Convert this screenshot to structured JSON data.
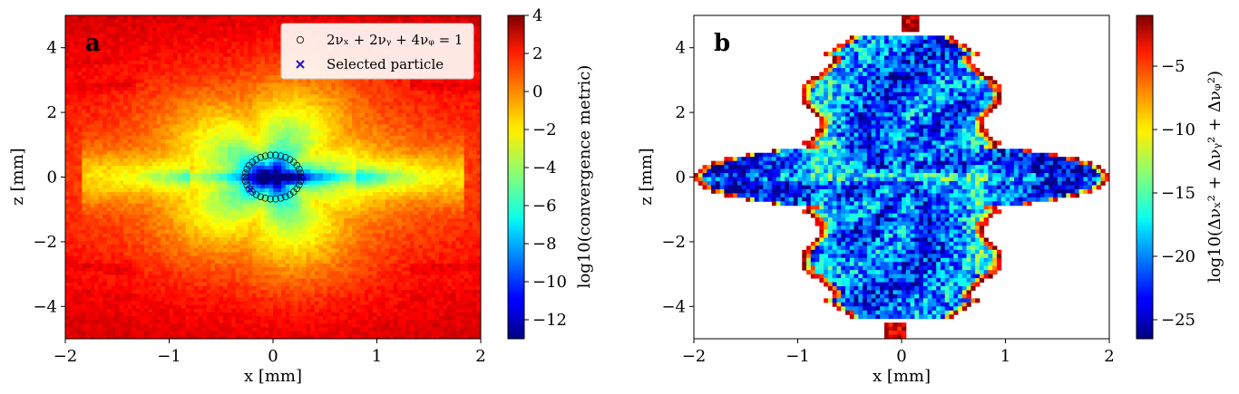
{
  "chart_data": [
    {
      "type": "heatmap",
      "panel_label": "a",
      "xlabel": "x [mm]",
      "ylabel": "z [mm]",
      "xlim": [
        -2,
        2
      ],
      "ylim": [
        -5,
        5
      ],
      "xticks": [
        "−2",
        "−1",
        "0",
        "1",
        "2"
      ],
      "xtick_values": [
        -2,
        -1,
        0,
        1,
        2
      ],
      "yticks": [
        "−4",
        "−2",
        "0",
        "2",
        "4"
      ],
      "ytick_values": [
        -4,
        -2,
        0,
        2,
        4
      ],
      "colormap": "jet",
      "colorbar": {
        "label": "log10(convergence metric)",
        "range": [
          -13,
          4
        ],
        "ticks": [
          "4",
          "2",
          "0",
          "−2",
          "−4",
          "−6",
          "−8",
          "−10",
          "−12"
        ],
        "tick_values": [
          4,
          2,
          0,
          -2,
          -4,
          -6,
          -8,
          -10,
          -12
        ]
      },
      "legend": {
        "placement": "top-right",
        "entries": [
          {
            "marker": "open-circle",
            "label": "2νₓ + 2νᵧ + 4νᵩ = 1"
          },
          {
            "marker": "x",
            "color": "#2a10c8",
            "label": "Selected particle"
          }
        ]
      },
      "resonance_curve": {
        "label": "2νₓ + 2νᵧ + 4νᵩ = 1",
        "center_x": 0,
        "center_z": 0,
        "half_width_x": 0.27,
        "half_height_z": 0.68
      },
      "selected_particle": {
        "x": -0.22,
        "z": -0.38
      }
    },
    {
      "type": "heatmap",
      "panel_label": "b",
      "xlabel": "x [mm]",
      "ylabel": "z [mm]",
      "xlim": [
        -2,
        2
      ],
      "ylim": [
        -5,
        5
      ],
      "xticks": [
        "−2",
        "−1",
        "0",
        "1",
        "2"
      ],
      "xtick_values": [
        -2,
        -1,
        0,
        1,
        2
      ],
      "yticks": [
        "−4",
        "−2",
        "0",
        "2",
        "4"
      ],
      "ytick_values": [
        -4,
        -2,
        0,
        2,
        4
      ],
      "colormap": "jet",
      "colorbar": {
        "label": "log10(Δνₓ² + Δνᵧ² + Δνᵩ²)",
        "range": [
          -26.5,
          -1
        ],
        "ticks": [
          "−5",
          "−10",
          "−15",
          "−20",
          "−25"
        ],
        "tick_values": [
          -5,
          -10,
          -15,
          -20,
          -25
        ]
      }
    }
  ]
}
